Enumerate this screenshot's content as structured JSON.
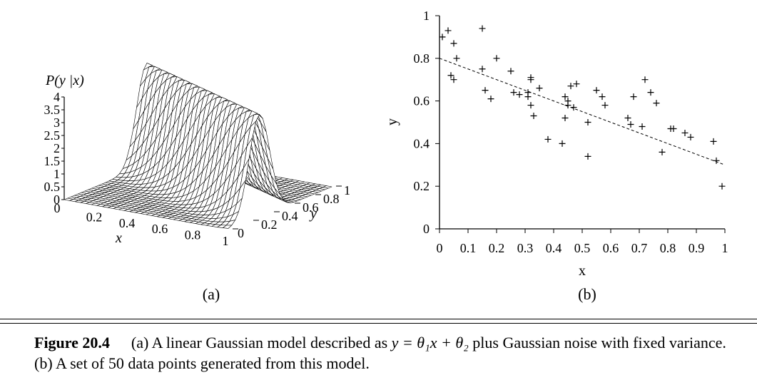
{
  "panel_a": {
    "z_axis_label": "P(y |x)",
    "z_ticks": [
      "0",
      "0.5",
      "1",
      "1.5",
      "2",
      "2.5",
      "3",
      "3.5",
      "4"
    ],
    "x_axis_label": "x",
    "x_ticks": [
      "0",
      "0.2",
      "0.4",
      "0.6",
      "0.8",
      "1"
    ],
    "y_axis_label": "y",
    "y_ticks": [
      "0",
      "0.2",
      "0.4",
      "0.6",
      "0.8",
      "1"
    ],
    "sublabel": "(a)"
  },
  "panel_b": {
    "sublabel": "(b)"
  },
  "caption": {
    "label": "Figure 20.4",
    "text_before_eq": "(a) A linear Gaussian model described as ",
    "equation": "y = θ₁x + θ₂",
    "text_after_eq": " plus Gaussian noise with fixed variance. (b) A set of 50 data points generated from this model."
  },
  "chart_data": [
    {
      "type": "surface",
      "xlabel": "x",
      "ylabel": "y",
      "zlabel": "P(y |x)",
      "xlim": [
        0,
        1
      ],
      "ylim": [
        0,
        1
      ],
      "zlim": [
        0,
        4
      ],
      "model": "y = θ1 x + θ2 plus Gaussian noise with fixed variance"
    },
    {
      "type": "scatter",
      "xlabel": "x",
      "ylabel": "y",
      "xlim": [
        0,
        1
      ],
      "ylim": [
        0,
        1
      ],
      "x_ticks": [
        "0",
        "0.1",
        "0.2",
        "0.3",
        "0.4",
        "0.5",
        "0.6",
        "0.7",
        "0.8",
        "0.9",
        "1"
      ],
      "y_ticks": [
        "0",
        "0.2",
        "0.4",
        "0.6",
        "0.8",
        "1"
      ],
      "marker": "+",
      "points": [
        [
          0.01,
          0.9
        ],
        [
          0.03,
          0.93
        ],
        [
          0.05,
          0.87
        ],
        [
          0.06,
          0.8
        ],
        [
          0.04,
          0.72
        ],
        [
          0.05,
          0.7
        ],
        [
          0.15,
          0.94
        ],
        [
          0.15,
          0.75
        ],
        [
          0.16,
          0.65
        ],
        [
          0.18,
          0.61
        ],
        [
          0.2,
          0.8
        ],
        [
          0.25,
          0.74
        ],
        [
          0.26,
          0.64
        ],
        [
          0.28,
          0.63
        ],
        [
          0.31,
          0.64
        ],
        [
          0.32,
          0.71
        ],
        [
          0.32,
          0.7
        ],
        [
          0.31,
          0.62
        ],
        [
          0.32,
          0.58
        ],
        [
          0.33,
          0.53
        ],
        [
          0.35,
          0.66
        ],
        [
          0.38,
          0.42
        ],
        [
          0.43,
          0.4
        ],
        [
          0.44,
          0.52
        ],
        [
          0.44,
          0.62
        ],
        [
          0.45,
          0.6
        ],
        [
          0.45,
          0.58
        ],
        [
          0.46,
          0.67
        ],
        [
          0.47,
          0.57
        ],
        [
          0.48,
          0.68
        ],
        [
          0.52,
          0.5
        ],
        [
          0.52,
          0.34
        ],
        [
          0.55,
          0.65
        ],
        [
          0.57,
          0.62
        ],
        [
          0.58,
          0.58
        ],
        [
          0.66,
          0.52
        ],
        [
          0.67,
          0.49
        ],
        [
          0.68,
          0.62
        ],
        [
          0.71,
          0.48
        ],
        [
          0.72,
          0.7
        ],
        [
          0.74,
          0.64
        ],
        [
          0.76,
          0.59
        ],
        [
          0.78,
          0.36
        ],
        [
          0.81,
          0.47
        ],
        [
          0.82,
          0.47
        ],
        [
          0.86,
          0.45
        ],
        [
          0.88,
          0.43
        ],
        [
          0.96,
          0.41
        ],
        [
          0.97,
          0.32
        ],
        [
          0.99,
          0.2
        ]
      ],
      "fit_line": {
        "style": "dashed",
        "x": [
          0,
          1
        ],
        "y": [
          0.8,
          0.3
        ]
      }
    }
  ]
}
